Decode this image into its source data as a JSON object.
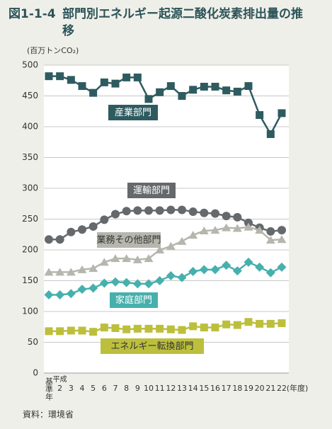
{
  "chart_data": {
    "type": "line",
    "figure_number": "図1-1-4",
    "title": "部門別エネルギー起源二酸化炭素排出量の推移",
    "y_label": "(百万トンCO₂)",
    "era_label": "平成",
    "x_label": "(年度)",
    "source": "資料：環境省",
    "categories": [
      "基準年",
      "2",
      "3",
      "4",
      "5",
      "6",
      "7",
      "8",
      "9",
      "10",
      "11",
      "12",
      "13",
      "14",
      "15",
      "16",
      "17",
      "18",
      "19",
      "20",
      "21",
      "22"
    ],
    "ylim": [
      0,
      500
    ],
    "yticks": [
      0,
      50,
      100,
      150,
      200,
      250,
      300,
      350,
      400,
      450,
      500
    ],
    "grid": true,
    "series": [
      {
        "name": "産業部門",
        "color": "#2e5b60",
        "marker": "square",
        "values": [
          482,
          482,
          476,
          466,
          455,
          472,
          470,
          480,
          480,
          445,
          456,
          466,
          450,
          460,
          465,
          465,
          459,
          457,
          466,
          419,
          388,
          422
        ]
      },
      {
        "name": "運輸部門",
        "color": "#65696b",
        "marker": "circle",
        "values": [
          217,
          217,
          229,
          233,
          238,
          249,
          258,
          263,
          264,
          264,
          264,
          265,
          265,
          262,
          260,
          259,
          255,
          253,
          244,
          236,
          230,
          232
        ]
      },
      {
        "name": "業務その他部門",
        "color": "#b6b6ae",
        "marker": "triangle",
        "values": [
          164,
          164,
          164,
          168,
          170,
          180,
          186,
          186,
          184,
          186,
          200,
          206,
          214,
          224,
          231,
          232,
          236,
          235,
          237,
          232,
          216,
          217
        ]
      },
      {
        "name": "家庭部門",
        "color": "#46b0ad",
        "marker": "diamond",
        "values": [
          127,
          127,
          129,
          136,
          138,
          146,
          148,
          147,
          145,
          145,
          150,
          158,
          155,
          165,
          168,
          168,
          175,
          166,
          180,
          172,
          163,
          172
        ]
      },
      {
        "name": "エネルギー転換部門",
        "color": "#bcbf3c",
        "marker": "square",
        "values": [
          68,
          68,
          69,
          69,
          67,
          74,
          73,
          71,
          72,
          72,
          72,
          71,
          70,
          76,
          74,
          74,
          79,
          78,
          83,
          80,
          80,
          81
        ]
      }
    ]
  }
}
